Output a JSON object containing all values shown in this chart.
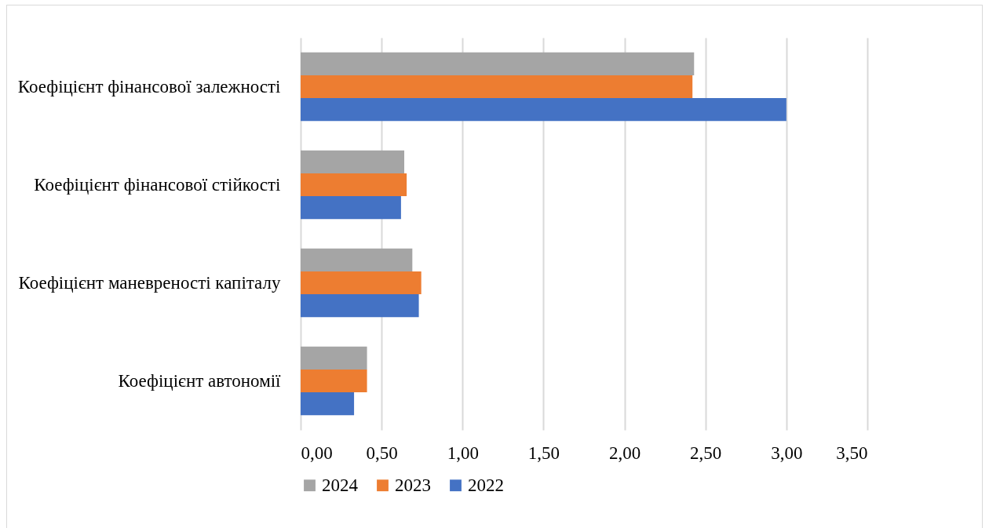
{
  "chart_data": {
    "type": "bar",
    "orientation": "horizontal",
    "categories": [
      "Коефіцієнт фінансової залежності",
      "Коефіцієнт фінансової стійкості",
      "Коефіцієнт маневреності капіталу",
      "Коефіцієнт автономії"
    ],
    "series": [
      {
        "name": "2024",
        "color": "#a5a5a5",
        "values": [
          2.43,
          0.64,
          0.69,
          0.41
        ]
      },
      {
        "name": "2023",
        "color": "#ed7d31",
        "values": [
          2.42,
          0.655,
          0.745,
          0.41
        ]
      },
      {
        "name": "2022",
        "color": "#4472c4",
        "values": [
          3.0,
          0.62,
          0.73,
          0.33
        ]
      }
    ],
    "xlim": [
      0,
      3.5
    ],
    "xticks": [
      {
        "value": 0,
        "label": "0,00"
      },
      {
        "value": 0.5,
        "label": "0,50"
      },
      {
        "value": 1,
        "label": "1,00"
      },
      {
        "value": 1.5,
        "label": "1,50"
      },
      {
        "value": 2,
        "label": "2,00"
      },
      {
        "value": 2.5,
        "label": "2,50"
      },
      {
        "value": 3,
        "label": "3,00"
      },
      {
        "value": 3.5,
        "label": "3,50"
      }
    ],
    "grid": "x",
    "legend": "bottom"
  }
}
